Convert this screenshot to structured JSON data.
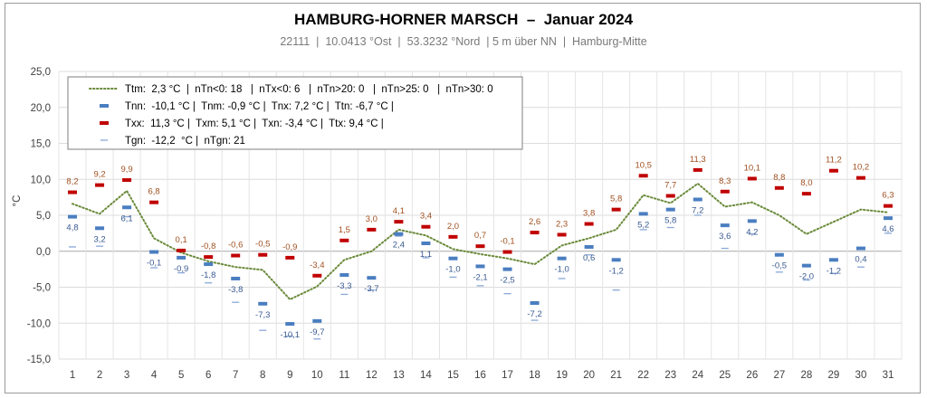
{
  "title": "HAMBURG-HORNER MARSCH  –  Januar 2024",
  "subtitle": "22111  |  10.0413 °Ost  |  53.3232 °Nord  | 5 m über NN  |  Hamburg-Mitte",
  "colors": {
    "ttm": "#6a8a3a",
    "tnn": "#4a7ec0",
    "txx": "#c00000",
    "tgn": "#8aa8d8",
    "tx_label": "#a05020",
    "tn_label": "#3a5a90"
  },
  "chart_data": {
    "type": "line",
    "ylabel": "°C",
    "ylim": [
      -15,
      25
    ],
    "y_ticks": [
      "25,0",
      "20,0",
      "15,0",
      "10,0",
      "5,0",
      "0,0",
      "-5,0",
      "-10,0",
      "-15,0"
    ],
    "categories": [
      "1",
      "2",
      "3",
      "4",
      "5",
      "6",
      "7",
      "8",
      "9",
      "10",
      "11",
      "12",
      "13",
      "14",
      "15",
      "16",
      "17",
      "18",
      "19",
      "20",
      "21",
      "22",
      "23",
      "24",
      "25",
      "26",
      "27",
      "28",
      "29",
      "30",
      "31"
    ],
    "series": [
      {
        "name": "Ttm",
        "type": "line",
        "values": [
          6.6,
          5.2,
          8.4,
          1.8,
          -0.2,
          -1.4,
          -2.2,
          -2.6,
          -6.7,
          -4.9,
          -1.2,
          0.0,
          3.0,
          2.2,
          0.3,
          -0.4,
          -1.0,
          -1.8,
          0.8,
          1.8,
          3.0,
          7.8,
          6.7,
          9.4,
          6.2,
          6.8,
          5.0,
          2.4,
          4.1,
          5.8,
          5.4
        ]
      },
      {
        "name": "Txx",
        "type": "marker",
        "values": [
          8.2,
          9.2,
          9.9,
          6.8,
          0.1,
          -0.8,
          -0.6,
          -0.5,
          -0.9,
          -3.4,
          1.5,
          3.0,
          4.1,
          3.4,
          2.0,
          0.7,
          -0.1,
          2.6,
          2.3,
          3.8,
          5.8,
          10.5,
          7.7,
          11.3,
          8.3,
          10.1,
          8.8,
          8.0,
          11.2,
          10.2,
          6.3
        ],
        "labels": [
          "8,2",
          "9,2",
          "9,9",
          "6,8",
          "0,1",
          "-0,8",
          "-0,6",
          "-0,5",
          "-0,9",
          "-3,4",
          "1,5",
          "3,0",
          "4,1",
          "3,4",
          "2,0",
          "0,7",
          "-0,1",
          "2,6",
          "2,3",
          "3,8",
          "5,8",
          "10,5",
          "7,7",
          "11,3",
          "8,3",
          "10,1",
          "8,8",
          "8,0",
          "11,2",
          "10,2",
          "6,3"
        ]
      },
      {
        "name": "Tnn",
        "type": "marker",
        "values": [
          4.8,
          3.2,
          6.1,
          -0.1,
          -0.9,
          -1.8,
          -3.8,
          -7.3,
          -10.1,
          -9.7,
          -3.3,
          -3.7,
          2.4,
          1.1,
          -1.0,
          -2.1,
          -2.5,
          -7.2,
          -1.0,
          0.6,
          -1.2,
          5.2,
          5.8,
          7.2,
          3.6,
          4.2,
          -0.5,
          -2.0,
          -1.2,
          0.4,
          4.6
        ],
        "labels": [
          "4,8",
          "3,2",
          "6,1",
          "-0,1",
          "-0,9",
          "-1,8",
          "-3,8",
          "-7,3",
          "-10,1",
          "-9,7",
          "-3,3",
          "-3,7",
          "2,4",
          "1,1",
          "-1,0",
          "-2,1",
          "-2,5",
          "-7,2",
          "-1,0",
          "0,6",
          "-1,2",
          "5,2",
          "5,8",
          "7,2",
          "3,6",
          "4,2",
          "-0,5",
          "-2,0",
          "-1,2",
          "0,4",
          "4,6"
        ]
      },
      {
        "name": "Tgn",
        "type": "marker",
        "values": [
          0.6,
          0.7,
          4.8,
          -2.3,
          -3.0,
          -4.4,
          -7.1,
          -11.0,
          -11.8,
          -12.2,
          -6.0,
          -5.4,
          2.1,
          -0.9,
          -3.6,
          -4.8,
          -5.9,
          -9.6,
          -3.8,
          -0.5,
          -5.4,
          3.0,
          3.3,
          5.0,
          0.4,
          2.4,
          -2.9,
          -4.0,
          -3.1,
          -2.2,
          2.5
        ]
      }
    ],
    "legend": {
      "placement": "top-left",
      "entries": [
        {
          "key": "Ttm",
          "text": "Ttm:  2,3 °C  |  nTn<0: 18   |  nTx<0: 6   |  nTn>20: 0   |  nTn>25: 0   |  nTn>30: 0"
        },
        {
          "key": "Tnn",
          "text": "Tnn:  -10,1 °C |  Tnm: -0,9 °C |  Tnx: 7,2 °C |  Ttn: -6,7 °C |"
        },
        {
          "key": "Txx",
          "text": "Txx:  11,3 °C |  Txm: 5,1 °C |  Txn: -3,4 °C |  Ttx: 9,4 °C |"
        },
        {
          "key": "Tgn",
          "text": "Tgn:  -12,2  °C |  nTgn: 21"
        }
      ]
    }
  }
}
